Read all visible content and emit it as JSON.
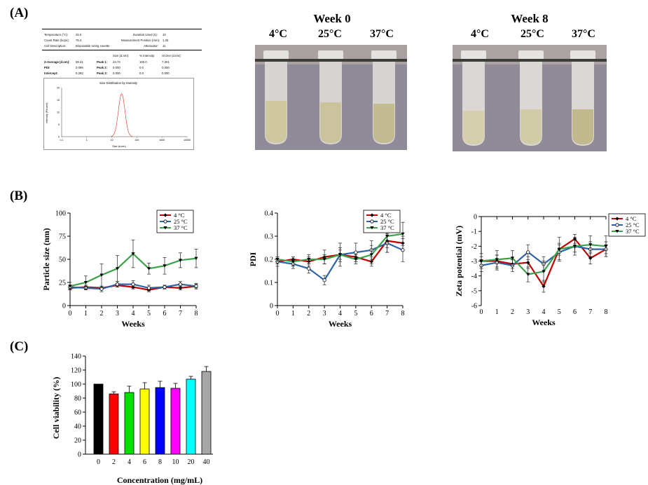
{
  "panels": {
    "a": "(A)",
    "b": "(B)",
    "c": "(C)"
  },
  "report": {
    "rows": [
      {
        "l1": "Temperature (°C):",
        "v1": "25.0",
        "l2": "Duration Used (s):",
        "v2": "10"
      },
      {
        "l1": "Count Rate (kcps):",
        "v1": "76.4",
        "l2": "Measurement Position (mm):",
        "v2": "1.25"
      },
      {
        "l1": "Cell Description:",
        "v1": "Disposable sizing cuvette",
        "l2": "Attenuator:",
        "v2": "11"
      }
    ],
    "table_headers": [
      "Size (d.nm):",
      "% Intensity:",
      "St Dev (d.nm):"
    ],
    "table_rows": [
      {
        "label": "Z-Average (d.nm):",
        "value": "58.41",
        "peak": "Peak 1:",
        "size": "24.74",
        "intensity": "100.0",
        "stdev": "7.301"
      },
      {
        "label": "PDI:",
        "value": "0.099",
        "peak": "Peak 2:",
        "size": "0.000",
        "intensity": "0.0",
        "stdev": "0.000"
      },
      {
        "label": "Intercept:",
        "value": "0.282",
        "peak": "Peak 3:",
        "size": "0.000",
        "intensity": "0.0",
        "stdev": "0.000"
      }
    ],
    "chart_title": "Size Distribution by Intensity",
    "chart_ylabel": "Intensity (Percent)",
    "chart_xlabel": "Size (d.nm)",
    "y_ticks": [
      "20",
      "15",
      "10",
      "5",
      "0"
    ],
    "x_ticks": [
      "0.1",
      "1",
      "10",
      "100",
      "1000",
      "10000"
    ]
  },
  "photos": {
    "week0": {
      "title": "Week 0",
      "temps": [
        "4°C",
        "25°C",
        "37°C"
      ]
    },
    "week8": {
      "title": "Week 8",
      "temps": [
        "4°C",
        "25°C",
        "37°C"
      ]
    }
  },
  "colors": {
    "c4": "#c00000",
    "c25": "#2e63a8",
    "c37": "#3aa34a"
  },
  "chart_data": [
    {
      "type": "line",
      "id": "particle_size",
      "title": "",
      "xlabel": "Weeks",
      "ylabel": "Particle size (nm)",
      "x": [
        0,
        1,
        2,
        3,
        4,
        5,
        6,
        7,
        8
      ],
      "xlim": [
        0,
        8
      ],
      "ylim": [
        0,
        100
      ],
      "y_ticks": [
        0,
        25,
        50,
        75,
        100
      ],
      "series": [
        {
          "name": "4 °C",
          "values": [
            19,
            20,
            19,
            22,
            20,
            17,
            20,
            19,
            21
          ],
          "errors": [
            2,
            2,
            2,
            2,
            2,
            2,
            2,
            2,
            2
          ]
        },
        {
          "name": "25 °C",
          "values": [
            20,
            19,
            18,
            23,
            23,
            19,
            20,
            23,
            21
          ],
          "errors": [
            2,
            2,
            3,
            3,
            4,
            3,
            2,
            3,
            3
          ]
        },
        {
          "name": "37 °C",
          "values": [
            21,
            25,
            33,
            40,
            56,
            40,
            43,
            49,
            51
          ],
          "errors": [
            4,
            7,
            12,
            14,
            15,
            6,
            9,
            8,
            10
          ]
        }
      ],
      "legend": "top-right"
    },
    {
      "type": "line",
      "id": "pdi",
      "title": "",
      "xlabel": "Weeks",
      "ylabel": "PDI",
      "x": [
        0,
        1,
        2,
        3,
        4,
        5,
        6,
        7,
        8
      ],
      "xlim": [
        0,
        8
      ],
      "ylim": [
        0,
        0.4
      ],
      "y_ticks": [
        0,
        0.1,
        0.2,
        0.3,
        0.4
      ],
      "series": [
        {
          "name": "4 °C",
          "values": [
            0.19,
            0.2,
            0.19,
            0.21,
            0.22,
            0.21,
            0.19,
            0.28,
            0.27
          ],
          "errors": [
            0.01,
            0.01,
            0.02,
            0.03,
            0.02,
            0.02,
            0.02,
            0.03,
            0.03
          ]
        },
        {
          "name": "25 °C",
          "values": [
            0.19,
            0.18,
            0.16,
            0.11,
            0.22,
            0.23,
            0.24,
            0.27,
            0.24
          ],
          "errors": [
            0.02,
            0.02,
            0.02,
            0.02,
            0.05,
            0.04,
            0.04,
            0.04,
            0.05
          ]
        },
        {
          "name": "37 °C",
          "values": [
            0.2,
            0.19,
            0.2,
            0.2,
            0.22,
            0.2,
            0.22,
            0.3,
            0.31
          ],
          "errors": [
            0.01,
            0.02,
            0.02,
            0.02,
            0.03,
            0.02,
            0.04,
            0.07,
            0.05
          ]
        }
      ],
      "legend": "top-right"
    },
    {
      "type": "line",
      "id": "zeta",
      "title": "",
      "xlabel": "Weeks",
      "ylabel": "Zeta potential (mV)",
      "x": [
        0,
        1,
        2,
        3,
        4,
        5,
        6,
        7,
        8
      ],
      "xlim": [
        0,
        8
      ],
      "ylim": [
        -6,
        0
      ],
      "y_ticks": [
        0,
        -1,
        -2,
        -3,
        -4,
        -5,
        -6
      ],
      "series": [
        {
          "name": "4 °C",
          "values": [
            -3.0,
            -3.0,
            -3.2,
            -3.1,
            -4.7,
            -2.2,
            -1.5,
            -2.8,
            -2.2
          ],
          "errors": [
            0.3,
            0.4,
            0.3,
            0.4,
            0.4,
            0.4,
            0.3,
            0.4,
            0.3
          ]
        },
        {
          "name": "25 °C",
          "values": [
            -3.3,
            -3.1,
            -3.3,
            -2.4,
            -3.2,
            -2.4,
            -2.0,
            -2.2,
            -2.2
          ],
          "errors": [
            0.4,
            0.5,
            0.4,
            0.5,
            0.5,
            0.5,
            0.4,
            0.5,
            0.5
          ]
        },
        {
          "name": "37 °C",
          "values": [
            -3.0,
            -2.9,
            -2.8,
            -3.9,
            -3.7,
            -2.2,
            -2.0,
            -1.9,
            -2.0
          ],
          "errors": [
            0.5,
            0.6,
            0.5,
            0.5,
            0.7,
            0.8,
            0.6,
            0.6,
            0.7
          ]
        }
      ],
      "legend": "top-right"
    },
    {
      "type": "bar",
      "id": "cell_viability",
      "title": "",
      "xlabel": "Concentration (mg/mL)",
      "ylabel": "Cell viability (%)",
      "categories": [
        "0",
        "2",
        "4",
        "6",
        "8",
        "10",
        "20",
        "40"
      ],
      "values": [
        100,
        86,
        88,
        93,
        95,
        94,
        107,
        118
      ],
      "errors": [
        0,
        3,
        9,
        9,
        9,
        7,
        4,
        7
      ],
      "colors": [
        "#000000",
        "#ff0000",
        "#00e000",
        "#ffff00",
        "#0000ff",
        "#ff00ff",
        "#00ffff",
        "#a6a6a6"
      ],
      "ylim": [
        0,
        140
      ],
      "y_ticks": [
        0,
        20,
        40,
        60,
        80,
        100,
        120,
        140
      ]
    }
  ]
}
